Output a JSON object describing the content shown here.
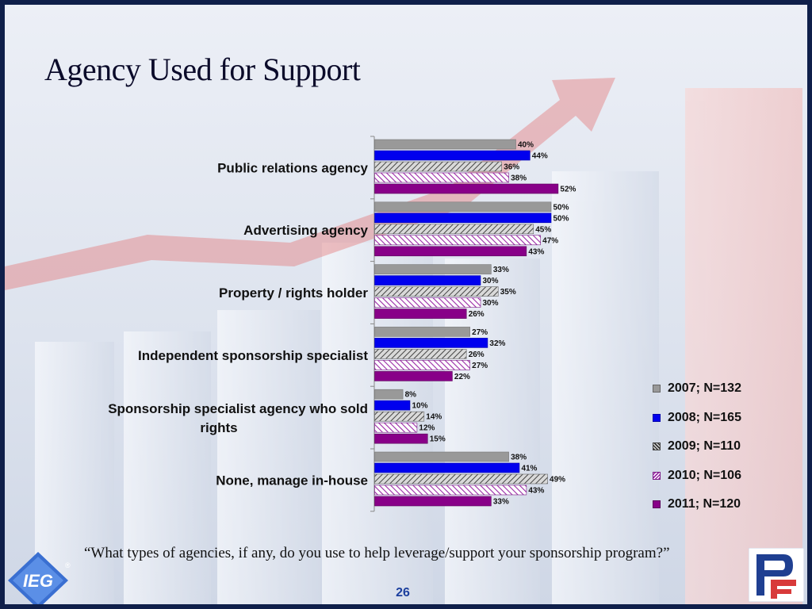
{
  "title": "Agency Used for Support",
  "question": "“What types of agencies, if any, do you use to help leverage/support your sponsorship program?”",
  "page_number": "26",
  "logo_left": {
    "icon": "ieg-diamond-logo",
    "text": "IEG",
    "mark": "®"
  },
  "logo_right": {
    "icon": "pf-logo",
    "text": "PF"
  },
  "colors": {
    "series": [
      "#999999",
      "#0000ee",
      "#8a8a8a",
      "#a040a8",
      "#880088"
    ],
    "patterns": [
      "solid",
      "solid",
      "hatch-dark",
      "hatch-purple",
      "solid"
    ],
    "accent_arrow": "#e36f6f",
    "frame": "#0f1f4a"
  },
  "chart_data": {
    "type": "bar",
    "orientation": "horizontal",
    "categories": [
      "Public relations agency",
      "Advertising agency",
      "Property / rights holder",
      "Independent sponsorship specialist",
      "Sponsorship specialist agency who sold rights",
      "None, manage in-house"
    ],
    "series": [
      {
        "name": "2007; N=132",
        "values": [
          40,
          50,
          33,
          27,
          8,
          38
        ]
      },
      {
        "name": "2008; N=165",
        "values": [
          44,
          50,
          30,
          32,
          10,
          41
        ]
      },
      {
        "name": "2009; N=110",
        "values": [
          36,
          45,
          35,
          26,
          14,
          49
        ]
      },
      {
        "name": "2010; N=106",
        "values": [
          38,
          47,
          30,
          27,
          12,
          43
        ]
      },
      {
        "name": "2011; N=120",
        "values": [
          52,
          43,
          26,
          22,
          15,
          33
        ]
      }
    ],
    "value_suffix": "%",
    "xlim": [
      0,
      60
    ],
    "grid": false,
    "legend_position": "right"
  }
}
